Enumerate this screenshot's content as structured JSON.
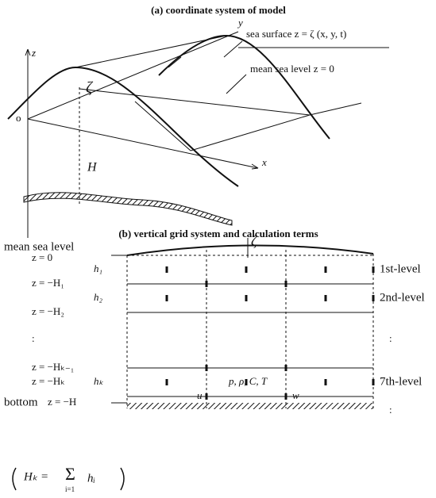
{
  "panel_a": {
    "title": "(a) coordinate system of model",
    "z_axis": "z",
    "y_axis": "y",
    "x_axis": "x",
    "origin": "o",
    "zeta": "ζ",
    "depth": "H",
    "sea_surface": "sea surface z = ζ (x, y, t)",
    "mean_sea_level": "mean sea level z = 0"
  },
  "panel_b": {
    "title": "(b) vertical grid system and calculation terms",
    "zeta": "ζ",
    "mean_sea_level": "mean sea level",
    "bottom": "bottom",
    "levels_left": [
      "z = 0",
      "z = −H₁",
      "z = −H₂",
      ":",
      "z = −Hₖ₋₁",
      "z = −Hₖ",
      "z = −H"
    ],
    "thickness": [
      "h₁",
      "h₂",
      "hₖ"
    ],
    "levels_right": [
      "1st-level",
      "2nd-level",
      ":",
      "7th-level",
      ":"
    ],
    "variables": "p, ρ, C, T",
    "u": "u",
    "w": "w",
    "formula": {
      "lhs": "Hₖ =",
      "sigma": "Σ",
      "lower": "i=1",
      "term": "hᵢ"
    }
  }
}
